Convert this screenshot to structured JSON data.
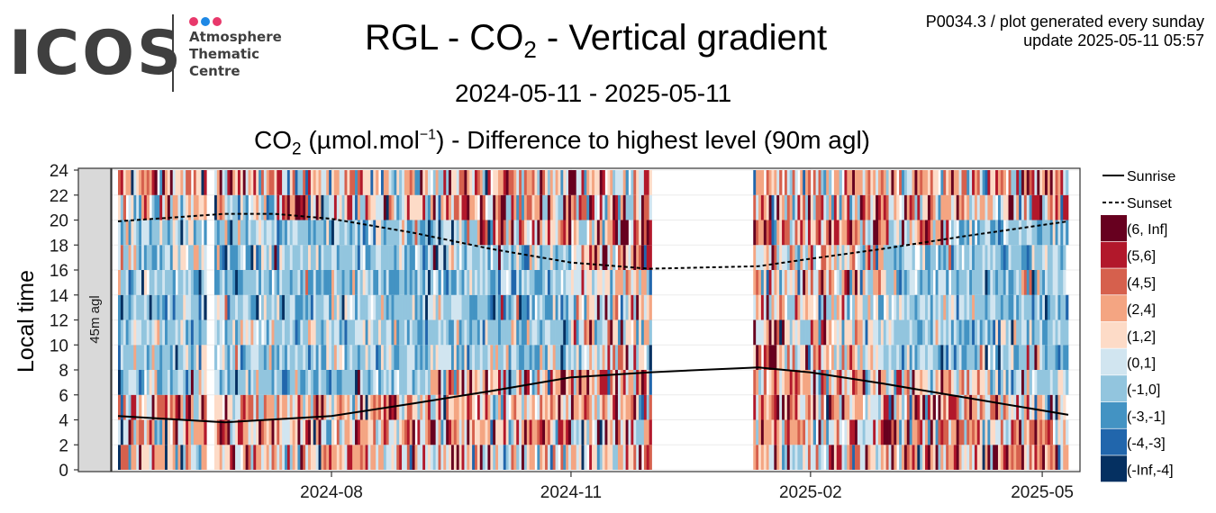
{
  "logo": {
    "wordmark": "ICOS",
    "sub_lines": [
      "Atmosphere",
      "Thematic",
      "Centre"
    ],
    "dot_colors": [
      "#e8386b",
      "#1e88e5",
      "#e8386b"
    ]
  },
  "title": {
    "pre": "RGL - CO",
    "sub": "2",
    "post": " - Vertical gradient"
  },
  "period": "2024-05-11 - 2025-05-11",
  "subtitle": {
    "pre": "CO",
    "sub": "2",
    "mid": " (µmol.mol",
    "sup": "−1",
    "post": ") - Difference to highest level (90m agl)"
  },
  "meta": {
    "line1": "P0034.3 / plot generated every sunday",
    "line2": "update  2025-05-11 05:57"
  },
  "chart_data": {
    "type": "heatmap",
    "panel_label": "45m agl",
    "xlabel": "",
    "ylabel": "Local time",
    "x_range": [
      "2024-05-11",
      "2025-05-11"
    ],
    "x_ticks": [
      "2024-08",
      "2024-11",
      "2025-02",
      "2025-05"
    ],
    "ylim": [
      0,
      24
    ],
    "y_ticks": [
      0,
      2,
      4,
      6,
      8,
      10,
      12,
      14,
      16,
      18,
      20,
      22,
      24
    ],
    "data_gaps": [
      [
        "2024-06-14",
        "2024-06-17"
      ],
      [
        "2024-12-02",
        "2025-01-10"
      ]
    ],
    "sunrise": {
      "name": "Sunrise",
      "points": [
        [
          "2024-05-11",
          4.3
        ],
        [
          "2024-06-21",
          3.8
        ],
        [
          "2024-08-01",
          4.3
        ],
        [
          "2024-09-01",
          5.3
        ],
        [
          "2024-10-01",
          6.3
        ],
        [
          "2024-11-01",
          7.4
        ],
        [
          "2024-12-01",
          7.8
        ],
        [
          "2024-12-21",
          8.0
        ],
        [
          "2025-01-12",
          8.2
        ],
        [
          "2025-02-01",
          7.8
        ],
        [
          "2025-03-01",
          6.9
        ],
        [
          "2025-04-01",
          5.8
        ],
        [
          "2025-05-11",
          4.4
        ]
      ]
    },
    "sunset": {
      "name": "Sunset",
      "points": [
        [
          "2024-05-11",
          19.9
        ],
        [
          "2024-06-21",
          20.5
        ],
        [
          "2024-07-10",
          20.5
        ],
        [
          "2024-08-01",
          20.1
        ],
        [
          "2024-09-01",
          19.0
        ],
        [
          "2024-10-01",
          17.7
        ],
        [
          "2024-11-01",
          16.6
        ],
        [
          "2024-12-01",
          16.1
        ],
        [
          "2025-01-12",
          16.3
        ],
        [
          "2025-02-01",
          16.9
        ],
        [
          "2025-03-01",
          17.7
        ],
        [
          "2025-04-01",
          18.7
        ],
        [
          "2025-05-11",
          19.9
        ]
      ]
    },
    "legend": {
      "placement": "right",
      "lines": [
        {
          "name": "Sunrise",
          "style": "solid"
        },
        {
          "name": "Sunset",
          "style": "dashed"
        }
      ],
      "bins": [
        {
          "label": "(6, Inf]",
          "color": "#67001f"
        },
        {
          "label": "(5,6]",
          "color": "#b2182b"
        },
        {
          "label": "(4,5]",
          "color": "#d6604d"
        },
        {
          "label": "(2,4]",
          "color": "#f4a582"
        },
        {
          "label": "(1,2]",
          "color": "#fddbc7"
        },
        {
          "label": "(0,1]",
          "color": "#d1e5f0"
        },
        {
          "label": "(-1,0]",
          "color": "#92c5de"
        },
        {
          "label": "(-3,-1]",
          "color": "#4393c3"
        },
        {
          "label": "(-4,-3]",
          "color": "#2166ac"
        },
        {
          "label": "(-Inf,-4]",
          "color": "#053061"
        }
      ]
    },
    "grid": true
  }
}
